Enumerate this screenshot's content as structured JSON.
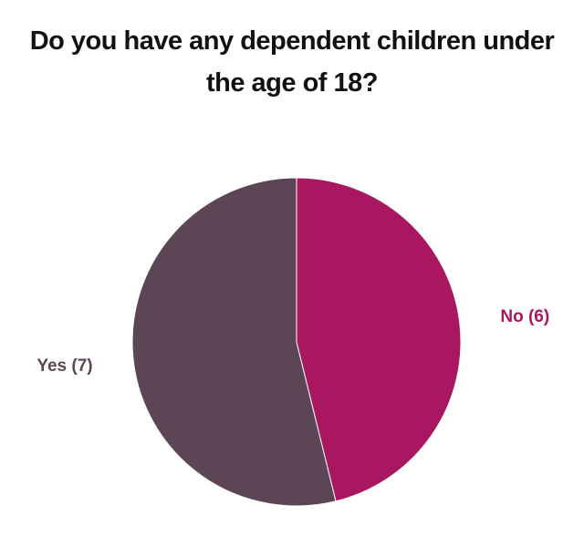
{
  "chart_data": {
    "type": "pie",
    "title": "Do you have any dependent children under the age of 18?",
    "categories": [
      "Yes (7)",
      "No (6)"
    ],
    "values": [
      7,
      6
    ],
    "colors": [
      "#5c4656",
      "#a8175f"
    ]
  }
}
